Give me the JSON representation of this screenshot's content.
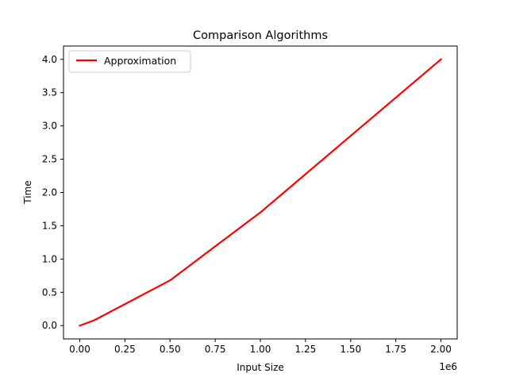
{
  "chart_data": {
    "type": "line",
    "title": "Comparison Algorithms",
    "xlabel": "Input Size",
    "ylabel": "Time",
    "x_offset_label": "1e6",
    "xlim": [
      -90000,
      2090000
    ],
    "ylim": [
      -0.2,
      4.2
    ],
    "xticks": [
      0,
      250000,
      500000,
      750000,
      1000000,
      1250000,
      1500000,
      1750000,
      2000000
    ],
    "xtick_labels": [
      "0.00",
      "0.25",
      "0.50",
      "0.75",
      "1.00",
      "1.25",
      "1.50",
      "1.75",
      "2.00"
    ],
    "yticks": [
      0.0,
      0.5,
      1.0,
      1.5,
      2.0,
      2.5,
      3.0,
      3.5,
      4.0
    ],
    "ytick_labels": [
      "0.0",
      "0.5",
      "1.0",
      "1.5",
      "2.0",
      "2.5",
      "3.0",
      "3.5",
      "4.0"
    ],
    "grid": false,
    "legend_position": "upper-left",
    "series": [
      {
        "name": "Approximation",
        "color": "#ff0000",
        "x": [
          0,
          80000,
          500000,
          1000000,
          2000000
        ],
        "y": [
          0.0,
          0.08,
          0.68,
          1.7,
          4.0
        ]
      }
    ]
  }
}
